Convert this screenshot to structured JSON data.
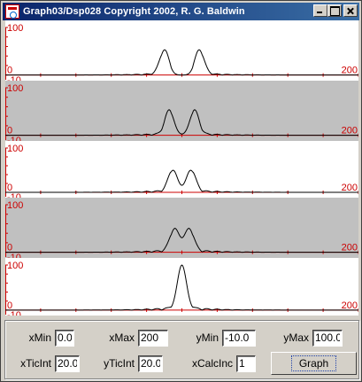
{
  "window": {
    "title": "Graph03/Dsp028 Copyright 2002, R. G. Baldwin",
    "icon": "java-cup-icon",
    "minimize_icon": "minimize-icon",
    "maximize_icon": "maximize-icon",
    "close_icon": "close-icon"
  },
  "colors": {
    "white_bg": "#ffffff",
    "gray_bg": "#c0c0c0",
    "axis_red": "#cc0000",
    "trace": "#000000"
  },
  "plot_labels": {
    "y_top": "100",
    "y_bottom": "-10",
    "y_zero": "0",
    "x_right": "200"
  },
  "controls": {
    "xMin": {
      "label": "xMin",
      "value": "0.0"
    },
    "xMax": {
      "label": "xMax",
      "value": "200"
    },
    "yMin": {
      "label": "yMin",
      "value": "-10.0"
    },
    "yMax": {
      "label": "yMax",
      "value": "100.0"
    },
    "xTicInt": {
      "label": "xTicInt",
      "value": "20.0"
    },
    "yTicInt": {
      "label": "yTicInt",
      "value": "20.0"
    },
    "xCalcInc": {
      "label": "xCalcInc",
      "value": "1"
    },
    "graph_button": "Graph"
  },
  "chart_data": [
    {
      "type": "line",
      "title": "",
      "xlim": [
        0,
        200
      ],
      "ylim": [
        -10,
        100
      ],
      "x_tick_interval": 20,
      "y_tick_interval": 20,
      "background": "white",
      "grid": false,
      "series": [
        {
          "peaks": [
            {
              "x": 90,
              "y": 50
            },
            {
              "x": 110,
              "y": 50
            }
          ],
          "sidelobes": true
        }
      ]
    },
    {
      "type": "line",
      "title": "",
      "xlim": [
        0,
        200
      ],
      "ylim": [
        -10,
        100
      ],
      "x_tick_interval": 20,
      "y_tick_interval": 20,
      "background": "gray",
      "grid": false,
      "series": [
        {
          "peaks": [
            {
              "x": 93,
              "y": 50
            },
            {
              "x": 107,
              "y": 50
            }
          ],
          "sidelobes": true
        }
      ]
    },
    {
      "type": "line",
      "title": "",
      "xlim": [
        0,
        200
      ],
      "ylim": [
        -10,
        100
      ],
      "x_tick_interval": 20,
      "y_tick_interval": 20,
      "background": "white",
      "grid": false,
      "series": [
        {
          "peaks": [
            {
              "x": 95,
              "y": 50
            },
            {
              "x": 105,
              "y": 50
            }
          ],
          "sidelobes": true
        }
      ]
    },
    {
      "type": "line",
      "title": "",
      "xlim": [
        0,
        200
      ],
      "ylim": [
        -10,
        100
      ],
      "x_tick_interval": 20,
      "y_tick_interval": 20,
      "background": "gray",
      "grid": false,
      "series": [
        {
          "peaks": [
            {
              "x": 96,
              "y": 50
            },
            {
              "x": 104,
              "y": 50
            }
          ],
          "sidelobes": true
        }
      ]
    },
    {
      "type": "line",
      "title": "",
      "xlim": [
        0,
        200
      ],
      "ylim": [
        -10,
        100
      ],
      "x_tick_interval": 20,
      "y_tick_interval": 20,
      "background": "white",
      "grid": false,
      "series": [
        {
          "peaks": [
            {
              "x": 100,
              "y": 100
            }
          ],
          "sidelobes": true
        }
      ]
    }
  ]
}
